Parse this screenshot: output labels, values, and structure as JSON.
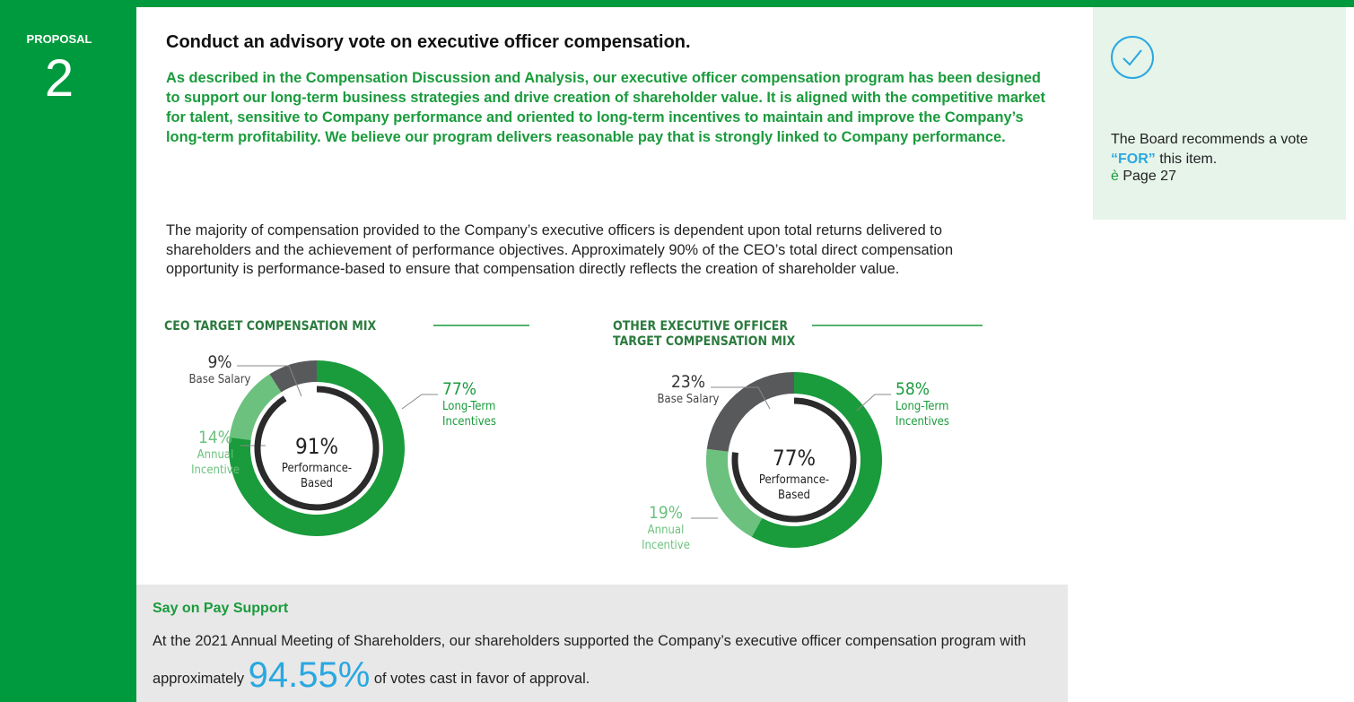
{
  "proposal": {
    "label": "PROPOSAL",
    "number": "2"
  },
  "heading": "Conduct an advisory vote on executive officer compensation.",
  "summary": "As described in the Compensation Discussion and Analysis, our executive officer compensation program has been designed to support our long-term business strategies and drive creation of shareholder value. It is aligned with the competitive market for talent, sensitive to Company performance and oriented to long-term incentives to maintain and improve the Company’s long-term profitability. We believe our program delivers reasonable pay that is strongly linked to Company performance.",
  "body": "The majority of compensation provided to the Company’s executive officers is dependent upon total returns delivered to shareholders and the achievement of performance objectives. Approximately 90% of the CEO’s total direct compensation opportunity is performance-based to ensure that compensation directly reflects the creation of shareholder value.",
  "charts": [
    {
      "type": "donut",
      "title_lines": [
        "CEO TARGET COMPENSATION MIX"
      ],
      "segments": [
        {
          "name_lines": [
            "Long-Term",
            "Incentives"
          ],
          "value": 77,
          "label": "77%",
          "color": "#1a9b3c"
        },
        {
          "name_lines": [
            "Annual",
            "Incentive"
          ],
          "value": 14,
          "label": "14%",
          "color": "#6cc17e"
        },
        {
          "name_lines": [
            "Base Salary"
          ],
          "value": 9,
          "label": "9%",
          "color": "#58595b"
        }
      ],
      "center": {
        "value": 91,
        "label": "91%",
        "text_lines": [
          "Performance-",
          "Based"
        ]
      }
    },
    {
      "type": "donut",
      "title_lines": [
        "OTHER EXECUTIVE OFFICER",
        "TARGET COMPENSATION MIX"
      ],
      "segments": [
        {
          "name_lines": [
            "Long-Term",
            "Incentives"
          ],
          "value": 58,
          "label": "58%",
          "color": "#1a9b3c"
        },
        {
          "name_lines": [
            "Annual",
            "Incentive"
          ],
          "value": 19,
          "label": "19%",
          "color": "#6cc17e"
        },
        {
          "name_lines": [
            "Base Salary"
          ],
          "value": 23,
          "label": "23%",
          "color": "#58595b"
        }
      ],
      "center": {
        "value": 77,
        "label": "77%",
        "text_lines": [
          "Performance-",
          "Based"
        ]
      }
    }
  ],
  "say_on_pay": {
    "title": "Say on Pay Support",
    "text_before": "At the 2021 Annual Meeting of Shareholders, our shareholders supported the Company’s executive officer compensation program with approximately",
    "highlight": "94.55%",
    "text_after": "of votes cast in favor of approval."
  },
  "sidebar": {
    "text_before": "The Board recommends a vote",
    "emphasis": "“FOR”",
    "text_after": "this item.",
    "link_arrow": "è",
    "link_text": "Page 27"
  }
}
